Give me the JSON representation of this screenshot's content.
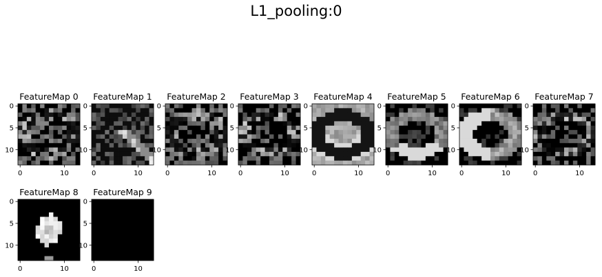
{
  "title": "L1_pooling:0",
  "chart_data": {
    "type": "heatmap",
    "title": "L1_pooling:0",
    "colormap": "gray",
    "grid": false,
    "layout": {
      "rows": 2,
      "cols": 8
    },
    "panel_size": [
      14,
      14
    ],
    "xticks": [
      0,
      10
    ],
    "yticks": [
      0,
      5,
      10
    ],
    "xtick_labels": [
      "0",
      "10"
    ],
    "ytick_labels": [
      "0",
      "5",
      "10"
    ],
    "panels": [
      {
        "title": "FeatureMap 0",
        "style": "speckle"
      },
      {
        "title": "FeatureMap 1",
        "style": "diagonal-bright"
      },
      {
        "title": "FeatureMap 2",
        "style": "speckle"
      },
      {
        "title": "FeatureMap 3",
        "style": "speckle-dark"
      },
      {
        "title": "FeatureMap 4",
        "style": "ring-light-background"
      },
      {
        "title": "FeatureMap 5",
        "style": "ring-bright-bottom"
      },
      {
        "title": "FeatureMap 6",
        "style": "ring-bright-left"
      },
      {
        "title": "FeatureMap 7",
        "style": "speckle-dark"
      },
      {
        "title": "FeatureMap 8",
        "style": "bright-oval"
      },
      {
        "title": "FeatureMap 9",
        "style": "empty"
      }
    ]
  }
}
